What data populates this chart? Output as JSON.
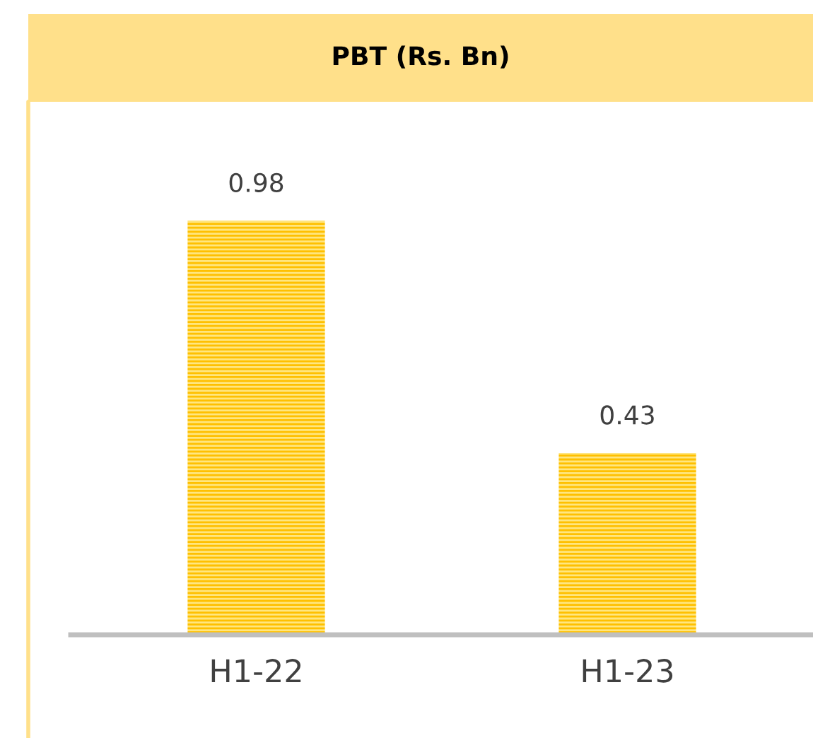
{
  "chart_data": {
    "type": "bar",
    "title": "PBT (Rs. Bn)",
    "categories": [
      "H1-22",
      "H1-23"
    ],
    "values": [
      0.98,
      0.43
    ],
    "color": "#ffc000",
    "data_labels": true,
    "grid": false,
    "legend": false
  }
}
